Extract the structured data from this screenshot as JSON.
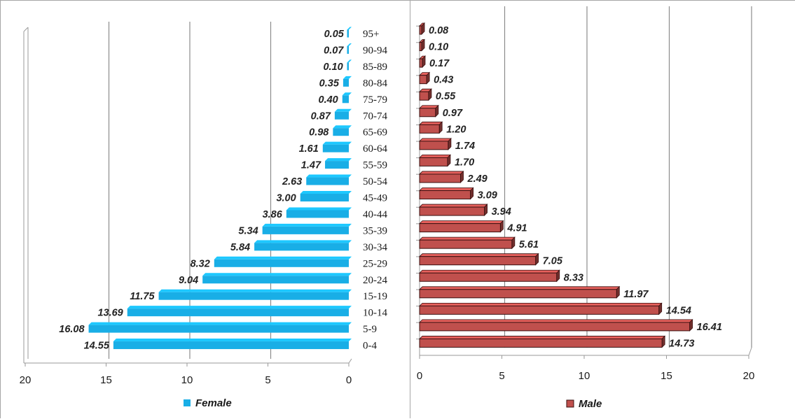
{
  "chart_data": [
    {
      "type": "bar",
      "orientation": "horizontal",
      "xaxis": "reversed",
      "xlim": [
        0,
        20
      ],
      "xticks": [
        "20",
        "15",
        "10",
        "5",
        "0"
      ],
      "grid": true,
      "legend_position": "bottom",
      "categories": [
        "95+",
        "90-94",
        "85-89",
        "80-84",
        "75-79",
        "70-74",
        "65-69",
        "60-64",
        "55-59",
        "50-54",
        "45-49",
        "40-44",
        "35-39",
        "30-34",
        "25-29",
        "20-24",
        "15-19",
        "10-14",
        "5-9",
        "0-4"
      ],
      "series": [
        {
          "name": "Female",
          "color": "#19aee6",
          "values": [
            0.05,
            0.07,
            0.1,
            0.35,
            0.4,
            0.87,
            0.98,
            1.61,
            1.47,
            2.63,
            3.0,
            3.86,
            5.34,
            5.84,
            8.32,
            9.04,
            11.75,
            13.69,
            16.08,
            14.55
          ],
          "labels": [
            "0.05",
            "0.07",
            "0.10",
            "0.35",
            "0.40",
            "0.87",
            "0.98",
            "1.61",
            "1.47",
            "2.63",
            "3.00",
            "3.86",
            "5.34",
            "5.84",
            "8.32",
            "9.04",
            "11.75",
            "13.69",
            "16.08",
            "14.55"
          ]
        }
      ]
    },
    {
      "type": "bar",
      "orientation": "horizontal",
      "xlim": [
        0,
        20
      ],
      "xticks": [
        "0",
        "5",
        "10",
        "15",
        "20"
      ],
      "grid": true,
      "legend_position": "bottom",
      "categories": [
        "95+",
        "90-94",
        "85-89",
        "80-84",
        "75-79",
        "70-74",
        "65-69",
        "60-64",
        "55-59",
        "50-54",
        "45-49",
        "40-44",
        "35-39",
        "30-34",
        "25-29",
        "20-24",
        "15-19",
        "10-14",
        "5-9",
        "0-4"
      ],
      "series": [
        {
          "name": "Male",
          "color": "#c0504d",
          "values": [
            0.08,
            0.1,
            0.17,
            0.43,
            0.55,
            0.97,
            1.2,
            1.74,
            1.7,
            2.49,
            3.09,
            3.94,
            4.91,
            5.61,
            7.05,
            8.33,
            11.97,
            14.54,
            16.41,
            14.73
          ],
          "labels": [
            "0.08",
            "0.10",
            "0.17",
            "0.43",
            "0.55",
            "0.97",
            "1.20",
            "1.74",
            "1.70",
            "2.49",
            "3.09",
            "3.94",
            "4.91",
            "5.61",
            "7.05",
            "8.33",
            "11.97",
            "14.54",
            "16.41",
            "14.73"
          ]
        }
      ]
    }
  ]
}
